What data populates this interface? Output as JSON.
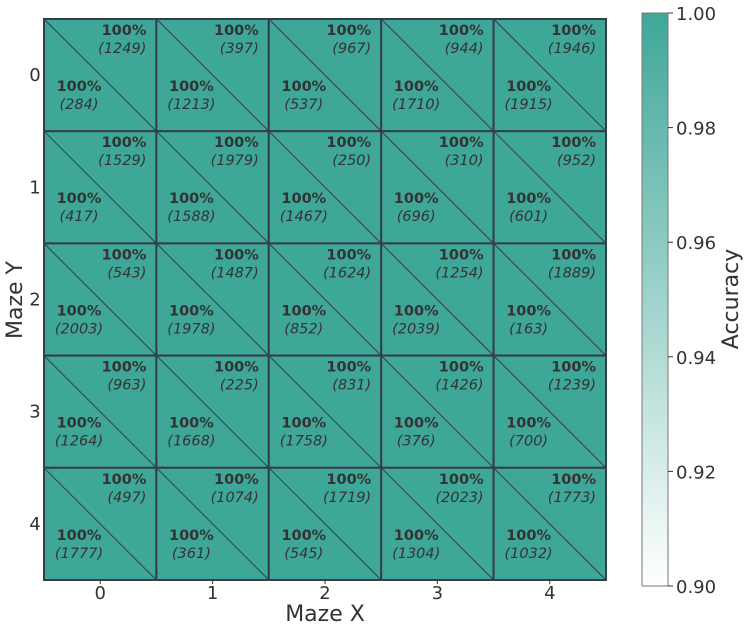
{
  "chart_data": {
    "type": "heatmap",
    "title": "",
    "xlabel": "Maze X",
    "ylabel": "Maze Y",
    "x_ticks": [
      "0",
      "1",
      "2",
      "3",
      "4"
    ],
    "y_ticks": [
      "0",
      "1",
      "2",
      "3",
      "4"
    ],
    "cells": [
      [
        {
          "upper": "100%",
          "upper_count": "(1249)",
          "lower": "100%",
          "lower_count": "(284)"
        },
        {
          "upper": "100%",
          "upper_count": "(397)",
          "lower": "100%",
          "lower_count": "(1213)"
        },
        {
          "upper": "100%",
          "upper_count": "(967)",
          "lower": "100%",
          "lower_count": "(537)"
        },
        {
          "upper": "100%",
          "upper_count": "(944)",
          "lower": "100%",
          "lower_count": "(1710)"
        },
        {
          "upper": "100%",
          "upper_count": "(1946)",
          "lower": "100%",
          "lower_count": "(1915)"
        }
      ],
      [
        {
          "upper": "100%",
          "upper_count": "(1529)",
          "lower": "100%",
          "lower_count": "(417)"
        },
        {
          "upper": "100%",
          "upper_count": "(1979)",
          "lower": "100%",
          "lower_count": "(1588)"
        },
        {
          "upper": "100%",
          "upper_count": "(250)",
          "lower": "100%",
          "lower_count": "(1467)"
        },
        {
          "upper": "100%",
          "upper_count": "(310)",
          "lower": "100%",
          "lower_count": "(696)"
        },
        {
          "upper": "100%",
          "upper_count": "(952)",
          "lower": "100%",
          "lower_count": "(601)"
        }
      ],
      [
        {
          "upper": "100%",
          "upper_count": "(543)",
          "lower": "100%",
          "lower_count": "(2003)"
        },
        {
          "upper": "100%",
          "upper_count": "(1487)",
          "lower": "100%",
          "lower_count": "(1978)"
        },
        {
          "upper": "100%",
          "upper_count": "(1624)",
          "lower": "100%",
          "lower_count": "(852)"
        },
        {
          "upper": "100%",
          "upper_count": "(1254)",
          "lower": "100%",
          "lower_count": "(2039)"
        },
        {
          "upper": "100%",
          "upper_count": "(1889)",
          "lower": "100%",
          "lower_count": "(163)"
        }
      ],
      [
        {
          "upper": "100%",
          "upper_count": "(963)",
          "lower": "100%",
          "lower_count": "(1264)"
        },
        {
          "upper": "100%",
          "upper_count": "(225)",
          "lower": "100%",
          "lower_count": "(1668)"
        },
        {
          "upper": "100%",
          "upper_count": "(831)",
          "lower": "100%",
          "lower_count": "(1758)"
        },
        {
          "upper": "100%",
          "upper_count": "(1426)",
          "lower": "100%",
          "lower_count": "(376)"
        },
        {
          "upper": "100%",
          "upper_count": "(1239)",
          "lower": "100%",
          "lower_count": "(700)"
        }
      ],
      [
        {
          "upper": "100%",
          "upper_count": "(497)",
          "lower": "100%",
          "lower_count": "(1777)"
        },
        {
          "upper": "100%",
          "upper_count": "(1074)",
          "lower": "100%",
          "lower_count": "(361)"
        },
        {
          "upper": "100%",
          "upper_count": "(1719)",
          "lower": "100%",
          "lower_count": "(545)"
        },
        {
          "upper": "100%",
          "upper_count": "(2023)",
          "lower": "100%",
          "lower_count": "(1304)"
        },
        {
          "upper": "100%",
          "upper_count": "(1773)",
          "lower": "100%",
          "lower_count": "(1032)"
        }
      ]
    ],
    "cell_color": "#3fa798",
    "grid_color": "#343e49",
    "colorbar": {
      "label": "Accuracy",
      "range": [
        0.9,
        1.0
      ],
      "ticks": [
        "0.90",
        "0.92",
        "0.94",
        "0.96",
        "0.98",
        "1.00"
      ],
      "color_low": "#ffffff",
      "color_high": "#3fa798"
    }
  }
}
